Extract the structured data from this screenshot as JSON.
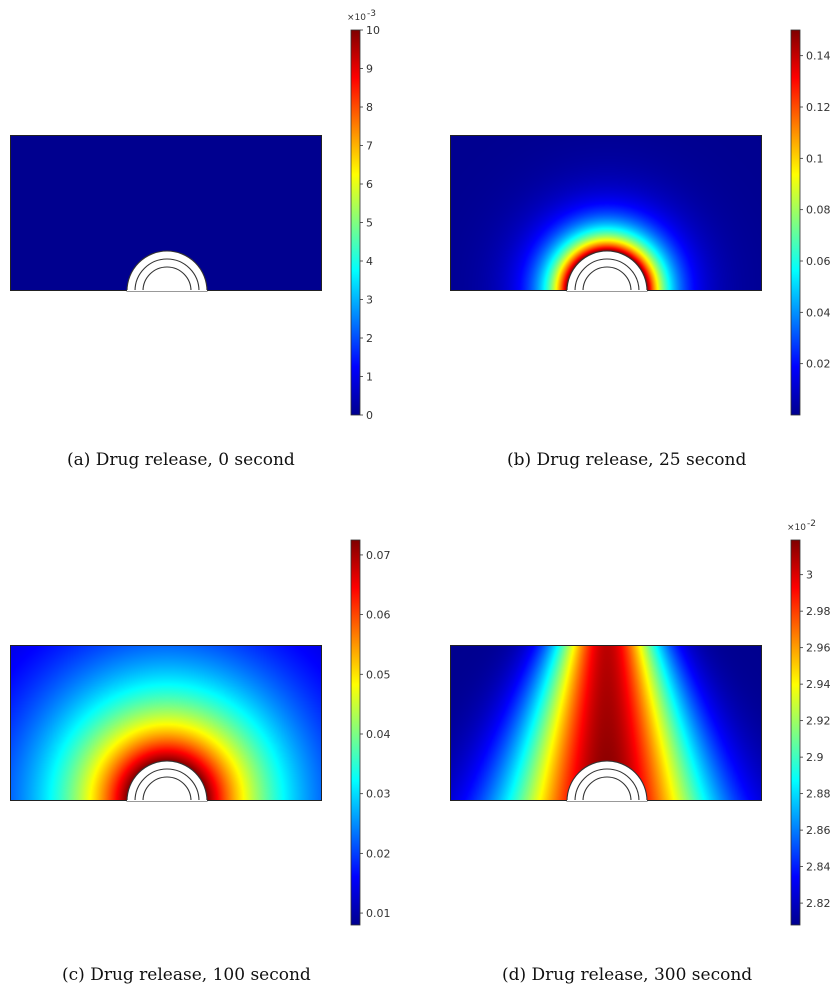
{
  "figure": {
    "panels": [
      {
        "caption": "(a) Drug release, 0 second",
        "field": "uniform",
        "colorbar": {
          "multiplier": "×10",
          "exponent": "-3",
          "min": 0,
          "max": 10,
          "ticks": [
            0,
            1,
            2,
            3,
            4,
            5,
            6,
            7,
            8,
            9,
            10
          ],
          "tick_labels": [
            "0",
            "1",
            "2",
            "3",
            "4",
            "5",
            "6",
            "7",
            "8",
            "9",
            "10"
          ]
        }
      },
      {
        "caption": "(b) Drug release, 25 second",
        "field": "near_source",
        "colorbar": {
          "multiplier": "",
          "exponent": "",
          "min": 0.0,
          "max": 0.15,
          "ticks": [
            0.02,
            0.04,
            0.06,
            0.08,
            0.1,
            0.12,
            0.14
          ],
          "tick_labels": [
            "0.02",
            "0.04",
            "0.06",
            "0.08",
            "0.1",
            "0.12",
            "0.14"
          ]
        }
      },
      {
        "caption": "(c) Drug release, 100 second",
        "field": "radial_spread",
        "colorbar": {
          "multiplier": "",
          "exponent": "",
          "min": 0.008,
          "max": 0.0725,
          "ticks": [
            0.01,
            0.02,
            0.03,
            0.04,
            0.05,
            0.06,
            0.07
          ],
          "tick_labels": [
            "0.01",
            "0.02",
            "0.03",
            "0.04",
            "0.05",
            "0.06",
            "0.07"
          ]
        }
      },
      {
        "caption": "(d) Drug release, 300 second",
        "field": "wide_spread",
        "colorbar": {
          "multiplier": "×10",
          "exponent": "-2",
          "min": 2.808,
          "max": 3.019,
          "ticks": [
            2.82,
            2.84,
            2.86,
            2.88,
            2.9,
            2.92,
            2.94,
            2.96,
            2.98,
            3.0
          ],
          "tick_labels": [
            "2.82",
            "2.84",
            "2.86",
            "2.88",
            "2.9",
            "2.92",
            "2.94",
            "2.96",
            "2.98",
            "3"
          ]
        }
      }
    ],
    "colormap": [
      "#00008f",
      "#0000ff",
      "#0080ff",
      "#00ffff",
      "#80ff80",
      "#ffff00",
      "#ff8000",
      "#ff0000",
      "#800000"
    ]
  }
}
